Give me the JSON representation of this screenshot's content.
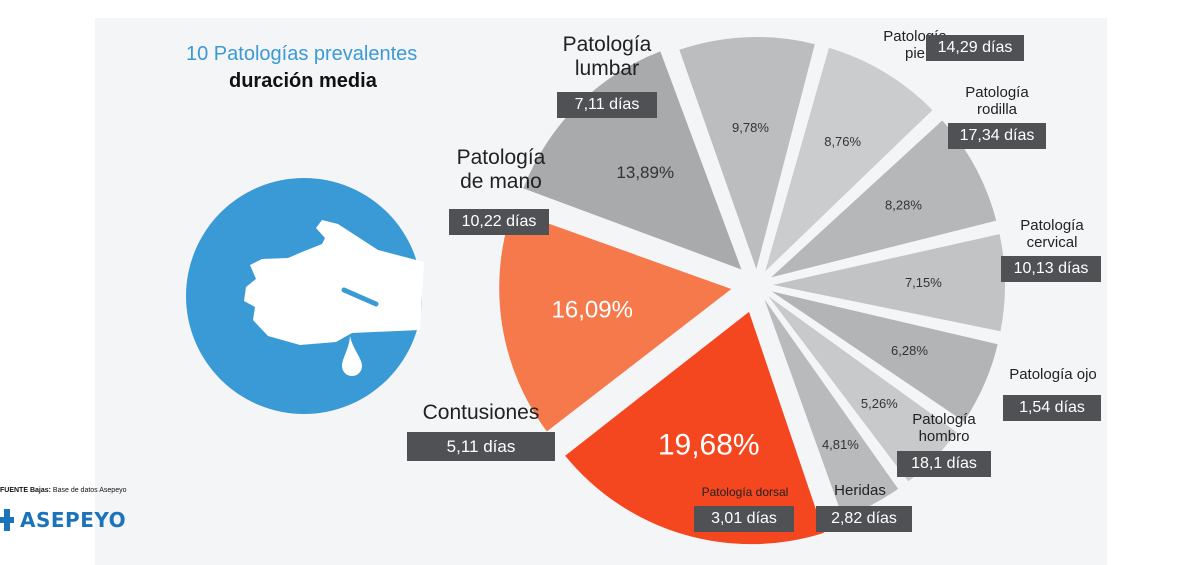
{
  "header": {
    "title_line1": "10 Patologías prevalentes",
    "title_line2": "duración media"
  },
  "source_prefix": "FUENTE Bajas:",
  "source_text": "Base de datos Asepeyo",
  "brand": "ASEPEYO",
  "colors": {
    "accent_blue": "#3a9ad6",
    "box": "#4f5155"
  },
  "icon": "hand-with-drop-icon",
  "chart_data": {
    "type": "pie",
    "slices": [
      {
        "name_lines": [
          "Patología",
          "pie"
        ],
        "percent": 9.78,
        "percent_label": "9,78%",
        "duration": "14,29 días",
        "color": "#bcbdbf"
      },
      {
        "name_lines": [
          "Patología",
          "rodilla"
        ],
        "percent": 8.76,
        "percent_label": "8,76%",
        "duration": "17,34 días",
        "color": "#cbcccd"
      },
      {
        "name_lines": [
          "Patología",
          "cervical"
        ],
        "percent": 8.28,
        "percent_label": "8,28%",
        "duration": "10,13 días",
        "color": "#b6b7b9"
      },
      {
        "name_lines": [
          "Patología ojo"
        ],
        "percent": 7.15,
        "percent_label": "7,15%",
        "duration": "1,54 días",
        "color": "#c2c3c5"
      },
      {
        "name_lines": [
          "Patología",
          "hombro"
        ],
        "percent": 6.28,
        "percent_label": "6,28%",
        "duration": "18,1 días",
        "color": "#b3b4b6"
      },
      {
        "name_lines": [
          "Heridas"
        ],
        "percent": 5.26,
        "percent_label": "5,26%",
        "duration": "2,82 días",
        "color": "#c8c9cb"
      },
      {
        "name_lines": [
          "Patología dorsal"
        ],
        "percent": 4.81,
        "percent_label": "4,81%",
        "duration": "3,01 días",
        "color": "#b9babc"
      },
      {
        "name_lines": [
          "Contusiones"
        ],
        "percent": 19.68,
        "percent_label": "19,68%",
        "duration": "5,11 días",
        "color": "#f4471f"
      },
      {
        "name_lines": [
          "Patología",
          "de mano"
        ],
        "percent": 16.09,
        "percent_label": "16,09%",
        "duration": "10,22 días",
        "color": "#f5794b"
      },
      {
        "name_lines": [
          "Patología",
          "lumbar"
        ],
        "percent": 13.89,
        "percent_label": "13,89%",
        "duration": "7,11 días",
        "color": "#a9aaac"
      }
    ]
  }
}
